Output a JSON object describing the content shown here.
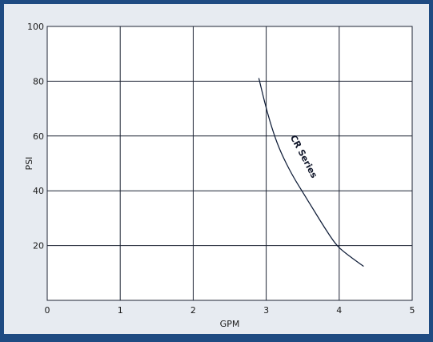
{
  "colors": {
    "frame_blue": "#1f4b82",
    "background": "#e7ebf1",
    "plot_background": "#ffffff",
    "grid": "#1c2333",
    "curve": "#0f1d38"
  },
  "chart_data": {
    "type": "line",
    "title": "",
    "xlabel": "GPM",
    "ylabel": "PSI",
    "xlim": [
      0,
      5
    ],
    "ylim": [
      0,
      100
    ],
    "x_ticks": [
      0,
      1,
      2,
      3,
      4,
      5
    ],
    "y_ticks": [
      20,
      40,
      60,
      80,
      100
    ],
    "x_tick_labels": [
      "0",
      "1",
      "2",
      "3",
      "4",
      "5"
    ],
    "y_tick_labels": [
      "20",
      "40",
      "60",
      "80",
      "100"
    ],
    "grid": true,
    "series": [
      {
        "name": "CR Series",
        "x": [
          2.9,
          3.0,
          3.1,
          3.2,
          3.35,
          3.5,
          3.65,
          3.8,
          3.95,
          4.05,
          4.2,
          4.33
        ],
        "y": [
          81,
          70,
          61,
          54,
          46,
          39.5,
          33,
          26.5,
          20.5,
          18,
          15,
          12.5
        ]
      }
    ],
    "annotations": [
      {
        "text": "CR Series",
        "x": 3.48,
        "y": 52,
        "rotation": 62
      }
    ]
  }
}
